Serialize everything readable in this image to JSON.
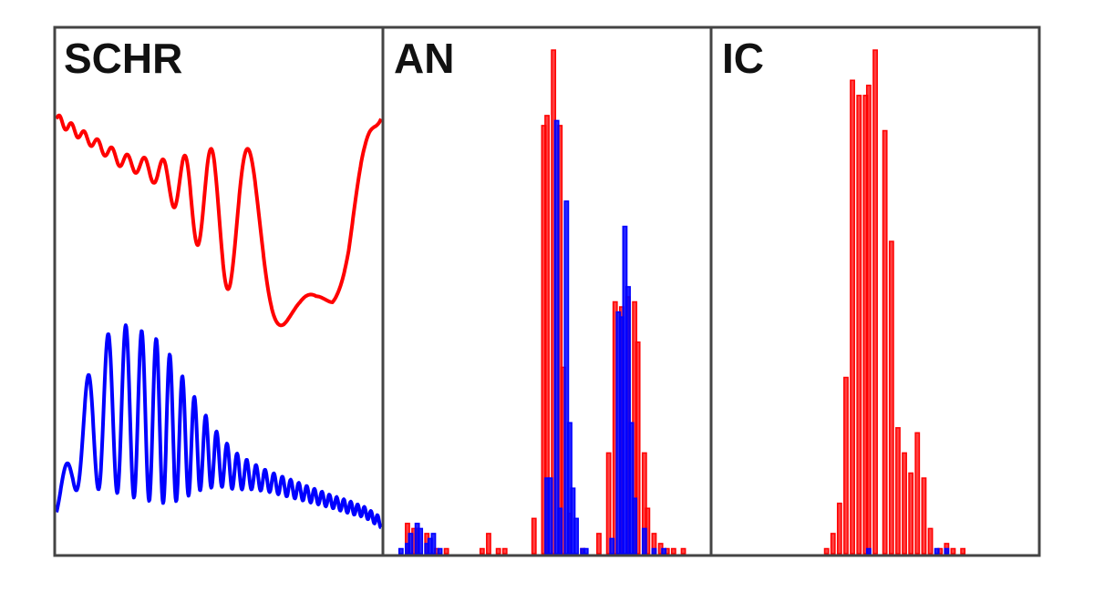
{
  "colors": {
    "series_a": "#ff0000",
    "series_b": "#0000ff",
    "frame": "#444444",
    "title": "#111111"
  },
  "chart_data": [
    {
      "type": "line",
      "title": "SCHR",
      "xlabel": "",
      "ylabel": "",
      "grid": false,
      "xlim": [
        0,
        1
      ],
      "ylim": [
        -2.6,
        2.0
      ],
      "series": [
        {
          "color": "#ff0000",
          "x": [
            0.0,
            0.05,
            0.1,
            0.15,
            0.2,
            0.25,
            0.3,
            0.35,
            0.4,
            0.45,
            0.5,
            0.55,
            0.6,
            0.65,
            0.7,
            0.75,
            0.8,
            0.85,
            0.9,
            0.95,
            1.0
          ],
          "envelope_amplitude": [
            0.05,
            0.05,
            0.05,
            0.06,
            0.07,
            0.08,
            0.12,
            0.2,
            0.35,
            0.5,
            0.62,
            0.75,
            0.8,
            0.82,
            0.8,
            0.78,
            0.75,
            0.7,
            0.55,
            0.3,
            0.05
          ],
          "baseline": [
            1.6,
            1.5,
            1.4,
            1.3,
            1.2,
            1.15,
            1.1,
            1.0,
            0.9,
            0.8,
            0.7,
            0.6,
            0.5,
            0.45,
            0.4,
            0.38,
            0.4,
            0.5,
            0.7,
            1.1,
            1.6
          ],
          "oscillation_cycles": 20
        },
        {
          "color": "#0000ff",
          "x": [
            0.0,
            0.05,
            0.1,
            0.15,
            0.2,
            0.25,
            0.3,
            0.35,
            0.4,
            0.45,
            0.5,
            0.55,
            0.6,
            0.65,
            0.7,
            0.75,
            0.8,
            0.85,
            0.9,
            0.95,
            1.0
          ],
          "envelope_amplitude": [
            0.05,
            0.3,
            0.55,
            0.75,
            0.82,
            0.82,
            0.8,
            0.72,
            0.55,
            0.38,
            0.25,
            0.18,
            0.13,
            0.1,
            0.09,
            0.08,
            0.07,
            0.06,
            0.06,
            0.05,
            0.05
          ],
          "baseline": [
            -2.2,
            -1.7,
            -1.4,
            -1.25,
            -1.2,
            -1.25,
            -1.3,
            -1.4,
            -1.5,
            -1.6,
            -1.7,
            -1.8,
            -1.85,
            -1.9,
            -1.95,
            -2.0,
            -2.05,
            -2.1,
            -2.15,
            -2.2,
            -2.3
          ],
          "oscillation_cycles": 22
        }
      ]
    },
    {
      "type": "bar",
      "title": "AN",
      "xlabel": "",
      "ylabel": "",
      "grid": false,
      "xlim": [
        0,
        1
      ],
      "ylim": [
        0,
        1
      ],
      "bar_width": 0.012,
      "series": [
        {
          "color": "#ff0000",
          "x": [
            0.07,
            0.09,
            0.1,
            0.13,
            0.16,
            0.19,
            0.3,
            0.32,
            0.35,
            0.37,
            0.46,
            0.49,
            0.5,
            0.52,
            0.54,
            0.55,
            0.57,
            0.61,
            0.66,
            0.69,
            0.71,
            0.73,
            0.75,
            0.77,
            0.78,
            0.8,
            0.81,
            0.83,
            0.85,
            0.87,
            0.89,
            0.92
          ],
          "values": [
            0.06,
            0.05,
            0.05,
            0.04,
            0.01,
            0.01,
            0.01,
            0.04,
            0.01,
            0.01,
            0.07,
            0.85,
            0.87,
            1.0,
            0.85,
            0.37,
            0.08,
            0.01,
            0.04,
            0.2,
            0.5,
            0.49,
            0.51,
            0.5,
            0.42,
            0.2,
            0.09,
            0.04,
            0.02,
            0.01,
            0.01,
            0.01
          ]
        },
        {
          "color": "#0000ff",
          "x": [
            0.05,
            0.07,
            0.08,
            0.1,
            0.11,
            0.13,
            0.14,
            0.15,
            0.17,
            0.5,
            0.51,
            0.53,
            0.54,
            0.56,
            0.57,
            0.58,
            0.59,
            0.61,
            0.62,
            0.7,
            0.72,
            0.73,
            0.74,
            0.75,
            0.76,
            0.77,
            0.8,
            0.83,
            0.86
          ],
          "values": [
            0.01,
            0.02,
            0.04,
            0.06,
            0.05,
            0.02,
            0.03,
            0.04,
            0.01,
            0.15,
            0.15,
            0.86,
            0.09,
            0.7,
            0.26,
            0.13,
            0.07,
            0.01,
            0.01,
            0.03,
            0.48,
            0.47,
            0.65,
            0.53,
            0.26,
            0.11,
            0.05,
            0.01,
            0.01
          ]
        }
      ]
    },
    {
      "type": "bar",
      "title": "IC",
      "xlabel": "",
      "ylabel": "",
      "grid": false,
      "xlim": [
        0,
        1
      ],
      "ylim": [
        0,
        1
      ],
      "bar_width": 0.012,
      "series": [
        {
          "color": "#ff0000",
          "x": [
            0.35,
            0.37,
            0.39,
            0.41,
            0.43,
            0.45,
            0.47,
            0.48,
            0.5,
            0.53,
            0.55,
            0.57,
            0.59,
            0.61,
            0.63,
            0.65,
            0.67,
            0.7,
            0.72,
            0.74,
            0.77
          ],
          "values": [
            0.01,
            0.04,
            0.1,
            0.35,
            0.94,
            0.91,
            0.91,
            0.93,
            1.0,
            0.84,
            0.62,
            0.25,
            0.2,
            0.16,
            0.24,
            0.15,
            0.05,
            0.01,
            0.02,
            0.01,
            0.01
          ]
        },
        {
          "color": "#0000ff",
          "x": [
            0.48,
            0.69,
            0.72
          ],
          "values": [
            0.01,
            0.01,
            0.01
          ]
        }
      ]
    }
  ]
}
